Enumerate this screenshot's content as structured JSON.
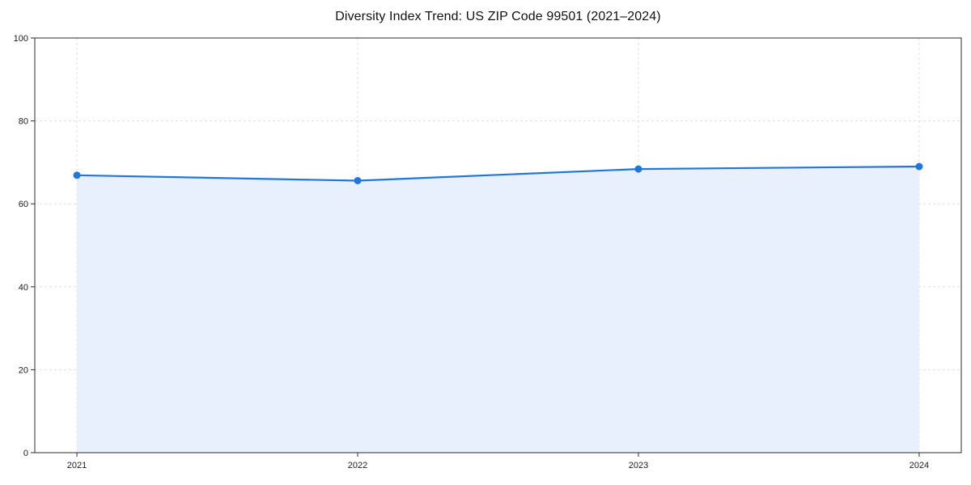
{
  "chart_data": {
    "type": "line",
    "title": "Diversity Index Trend: US ZIP Code 99501 (2021–2024)",
    "xlabel": "",
    "ylabel": "",
    "x": [
      2021,
      2022,
      2023,
      2024
    ],
    "series": [
      {
        "name": "Diversity Index",
        "values": [
          66.9,
          65.6,
          68.4,
          69.0
        ]
      }
    ],
    "xticks": [
      2021,
      2022,
      2023,
      2024
    ],
    "yticks": [
      0,
      20,
      40,
      60,
      80,
      100
    ],
    "xlim": [
      2020.85,
      2024.15
    ],
    "ylim": [
      0,
      100
    ],
    "grid": true,
    "grid_style": "dashed",
    "legend": "none",
    "area_fill": true,
    "line_color": "#2176d9",
    "fill_color": "#e7f0fc",
    "marker": "circle",
    "marker_radius": 4.5,
    "background_color": "#ffffff",
    "spine_color": "#2b2b2b"
  }
}
